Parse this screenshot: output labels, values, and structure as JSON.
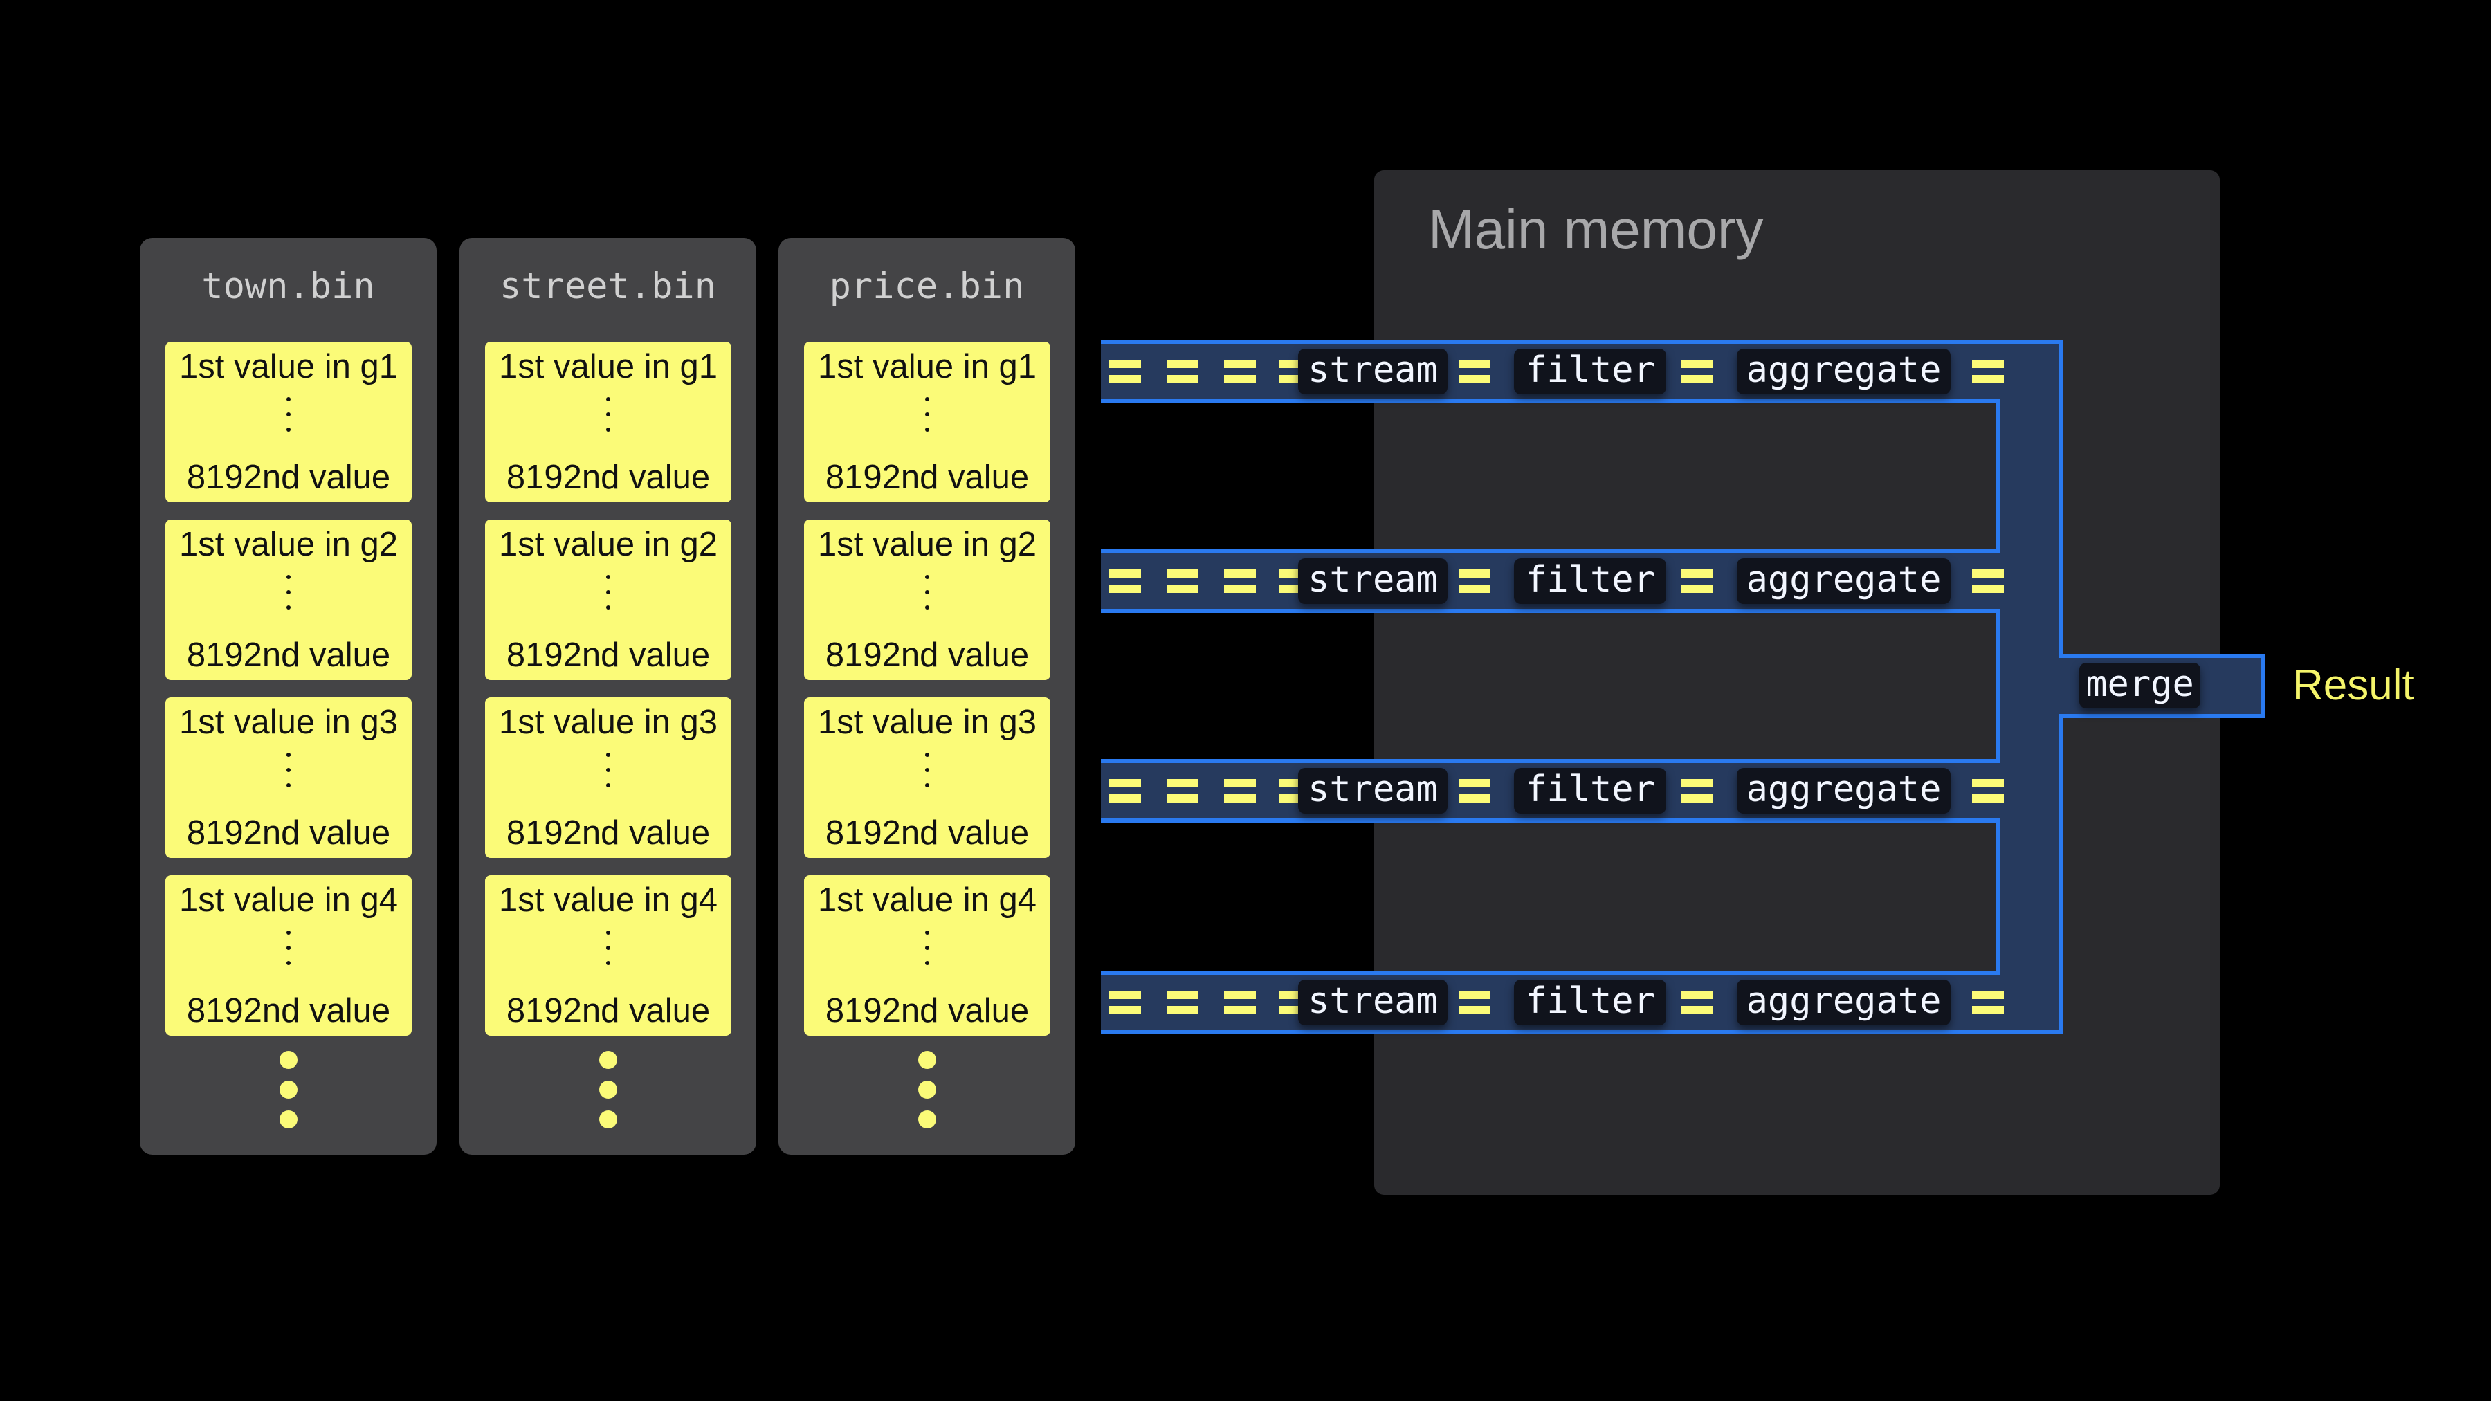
{
  "colors": {
    "card": "#fbfb78",
    "pipe_fill": "#263a5e",
    "pipe_border": "#2a7af0",
    "memory_bg": "#2a2a2d",
    "panel_bg": "#444446"
  },
  "columns": [
    {
      "title": "town.bin",
      "groups": [
        {
          "first": "1st value in g1",
          "last": "8192nd value"
        },
        {
          "first": "1st value in g2",
          "last": "8192nd value"
        },
        {
          "first": "1st value in g3",
          "last": "8192nd value"
        },
        {
          "first": "1st value in g4",
          "last": "8192nd value"
        }
      ]
    },
    {
      "title": "street.bin",
      "groups": [
        {
          "first": "1st value in g1",
          "last": "8192nd value"
        },
        {
          "first": "1st value in g2",
          "last": "8192nd value"
        },
        {
          "first": "1st value in g3",
          "last": "8192nd value"
        },
        {
          "first": "1st value in g4",
          "last": "8192nd value"
        }
      ]
    },
    {
      "title": "price.bin",
      "groups": [
        {
          "first": "1st value in g1",
          "last": "8192nd value"
        },
        {
          "first": "1st value in g2",
          "last": "8192nd value"
        },
        {
          "first": "1st value in g3",
          "last": "8192nd value"
        },
        {
          "first": "1st value in g4",
          "last": "8192nd value"
        }
      ]
    }
  ],
  "memory": {
    "title": "Main memory"
  },
  "pipeline": {
    "stages": [
      "stream",
      "filter",
      "aggregate"
    ],
    "lanes": 4,
    "merge": "merge"
  },
  "result": "Result"
}
